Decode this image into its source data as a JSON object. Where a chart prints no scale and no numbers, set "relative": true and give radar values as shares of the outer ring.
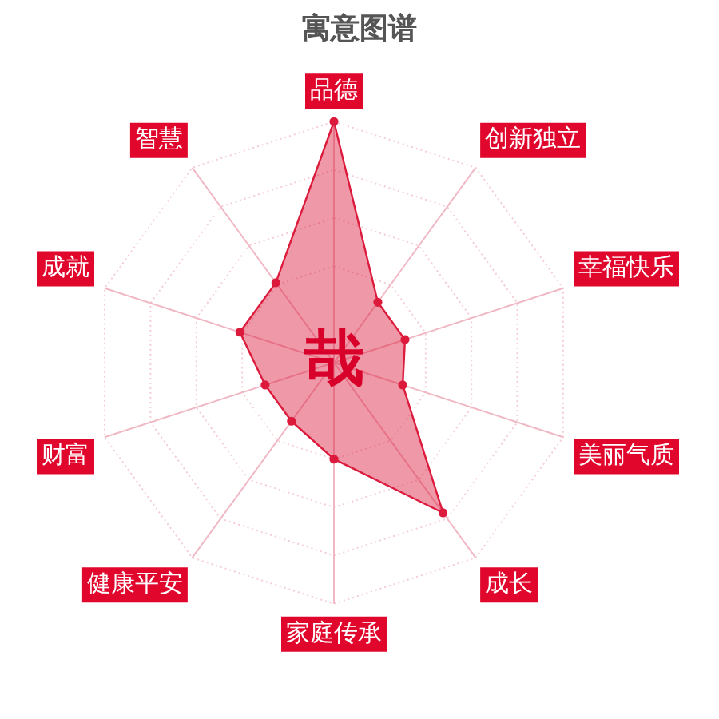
{
  "chart_data": {
    "type": "radar",
    "title": "寓意图谱",
    "categories": [
      "品德",
      "创新独立",
      "幸福快乐",
      "美丽气质",
      "成长",
      "家庭传承",
      "健康平安",
      "财富",
      "成就",
      "智慧"
    ],
    "series": [
      {
        "color": "#dc1a3c",
        "values": [
          1,
          0.31,
          0.31,
          0.3,
          0.77,
          0.4,
          0.3,
          0.3,
          0.41,
          0.41
        ]
      }
    ],
    "relative": true,
    "grid": true,
    "legend": false,
    "marker": "circle",
    "line_style": "solid",
    "annotations": [
      "哉"
    ]
  }
}
